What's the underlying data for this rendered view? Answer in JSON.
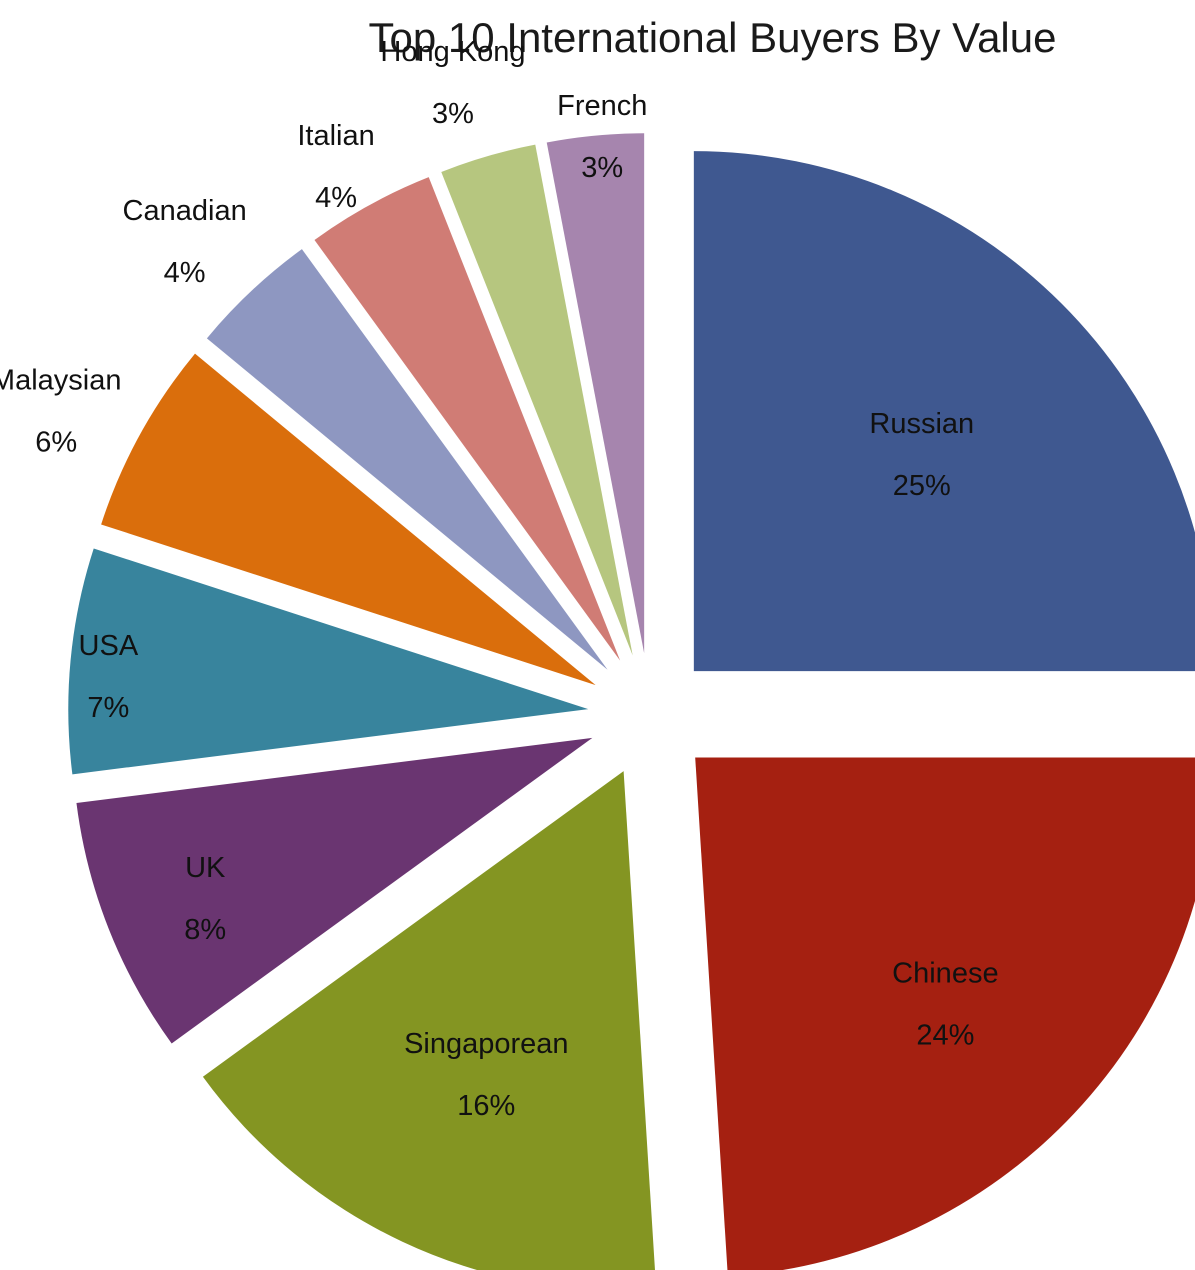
{
  "chart_data": {
    "type": "pie",
    "title": "Top 10 International Buyers By Value",
    "legend": "none",
    "slices": [
      {
        "name": "Russian",
        "value": 25,
        "label": "25%",
        "color": "#3f5890"
      },
      {
        "name": "Chinese",
        "value": 24,
        "label": "24%",
        "color": "#a52011"
      },
      {
        "name": "Singaporean",
        "value": 16,
        "label": "16%",
        "color": "#849522"
      },
      {
        "name": "UK",
        "value": 8,
        "label": "8%",
        "color": "#6a3571"
      },
      {
        "name": "USA",
        "value": 7,
        "label": "7%",
        "color": "#38849d"
      },
      {
        "name": "Malaysian",
        "value": 6,
        "label": "6%",
        "color": "#da6e0c"
      },
      {
        "name": "Canadian",
        "value": 4,
        "label": "4%",
        "color": "#8e97c1"
      },
      {
        "name": "Italian",
        "value": 4,
        "label": "4%",
        "color": "#d07c75"
      },
      {
        "name": "Hong Kong",
        "value": 3,
        "label": "3%",
        "color": "#b6c67f"
      },
      {
        "name": "French",
        "value": 3,
        "label": "3%",
        "color": "#a685ae"
      }
    ]
  }
}
